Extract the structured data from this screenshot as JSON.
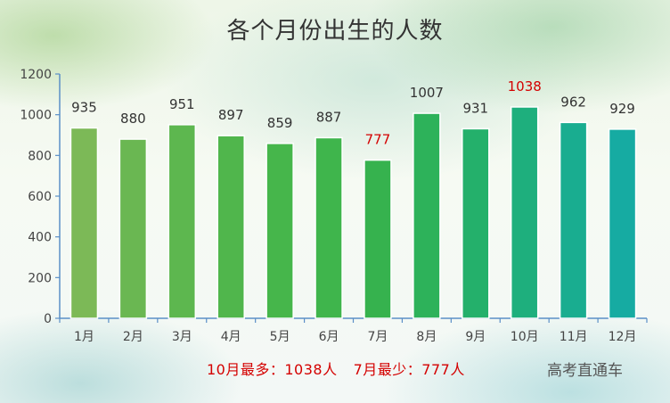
{
  "title": "各个月份出生的人数",
  "chart_data": {
    "type": "bar",
    "title": "各个月份出生的人数",
    "categories": [
      "1月",
      "2月",
      "3月",
      "4月",
      "5月",
      "6月",
      "7月",
      "8月",
      "9月",
      "10月",
      "11月",
      "12月"
    ],
    "values": [
      935,
      880,
      951,
      897,
      859,
      887,
      777,
      1007,
      931,
      1038,
      962,
      929
    ],
    "ylim": [
      0,
      1200
    ],
    "yticks": [
      0,
      200,
      400,
      600,
      800,
      1000,
      1200
    ],
    "grid": false,
    "highlight_color": "#d40000",
    "bar_colors": [
      "#7cb957",
      "#6ab752",
      "#5db74f",
      "#50b64c",
      "#46b64b",
      "#3fb54c",
      "#36b24e",
      "#2db25a",
      "#24b06b",
      "#1eaf7d",
      "#19ad90",
      "#16aba2"
    ]
  },
  "annotations": {
    "max_note": "10月最多：1038人",
    "min_note": "7月最少：777人"
  },
  "brand": "高考直通车"
}
